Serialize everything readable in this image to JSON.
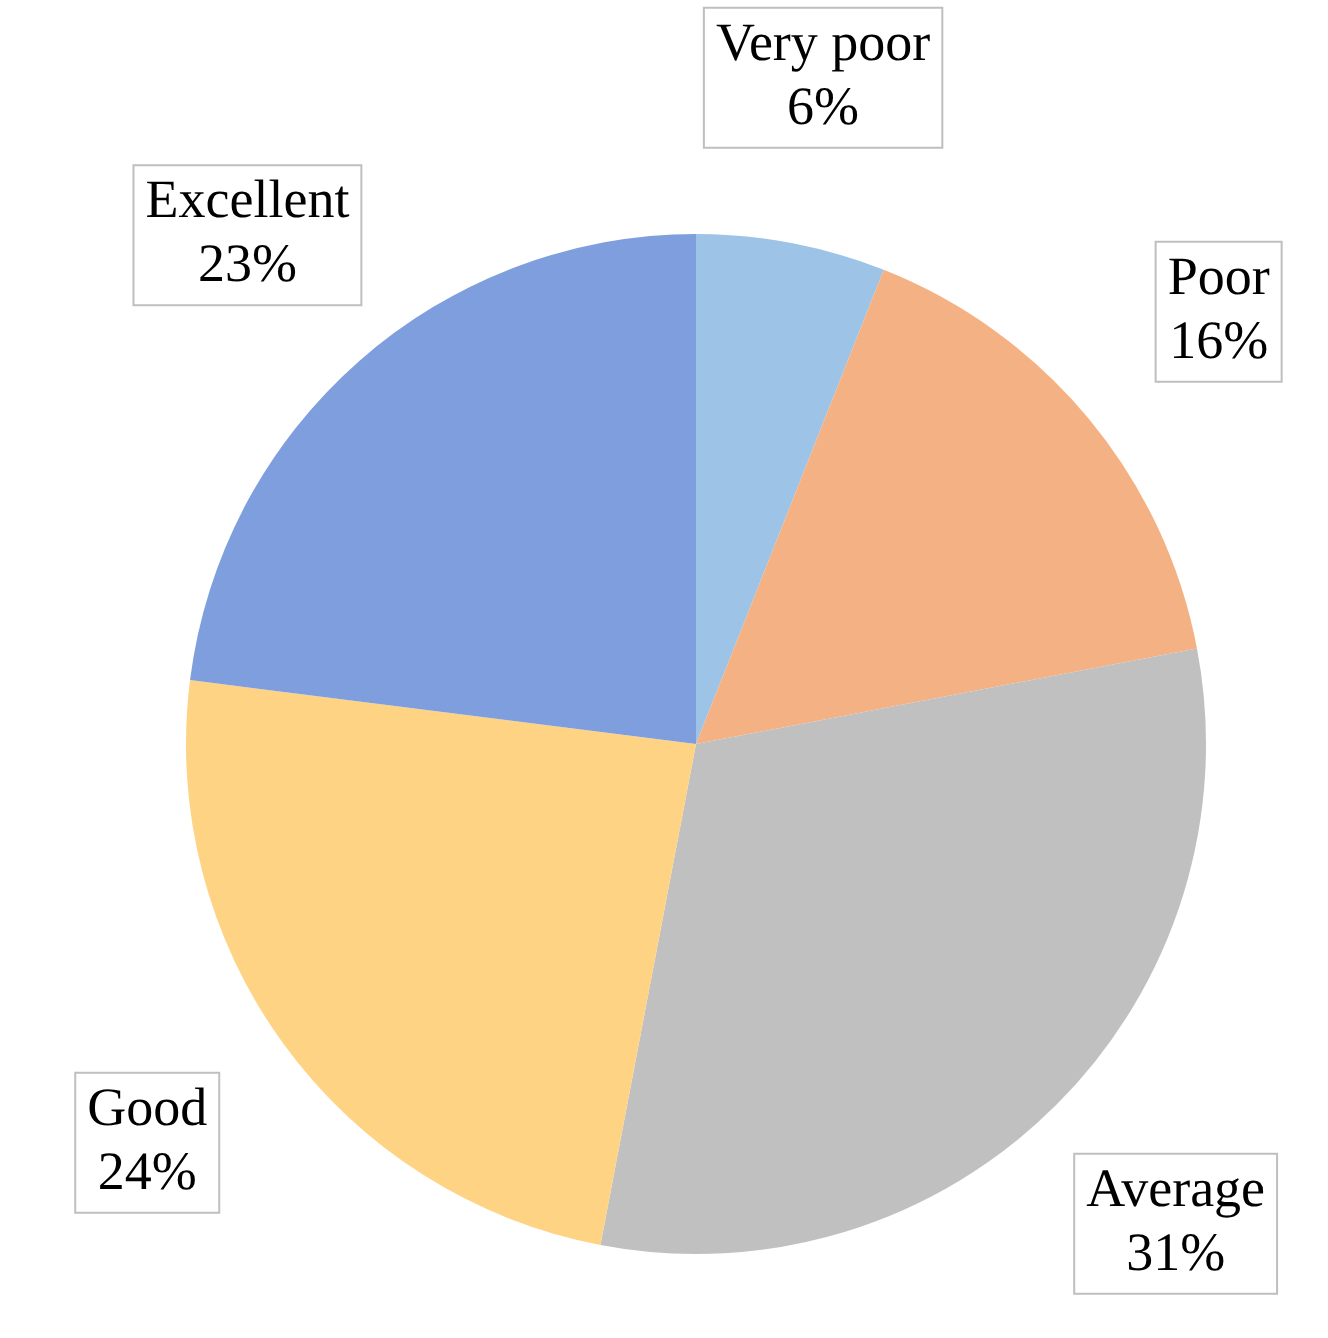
{
  "chart_data": {
    "type": "pie",
    "categories": [
      "Very poor",
      "Poor",
      "Average",
      "Good",
      "Excellent"
    ],
    "values": [
      6,
      16,
      31,
      24,
      23
    ],
    "value_labels": [
      "6%",
      "16%",
      "31%",
      "24%",
      "23%"
    ],
    "colors": [
      "#9dc3e6",
      "#f4b183",
      "#c0c0c0",
      "#ffd384",
      "#7f9ede"
    ],
    "legend": false
  }
}
